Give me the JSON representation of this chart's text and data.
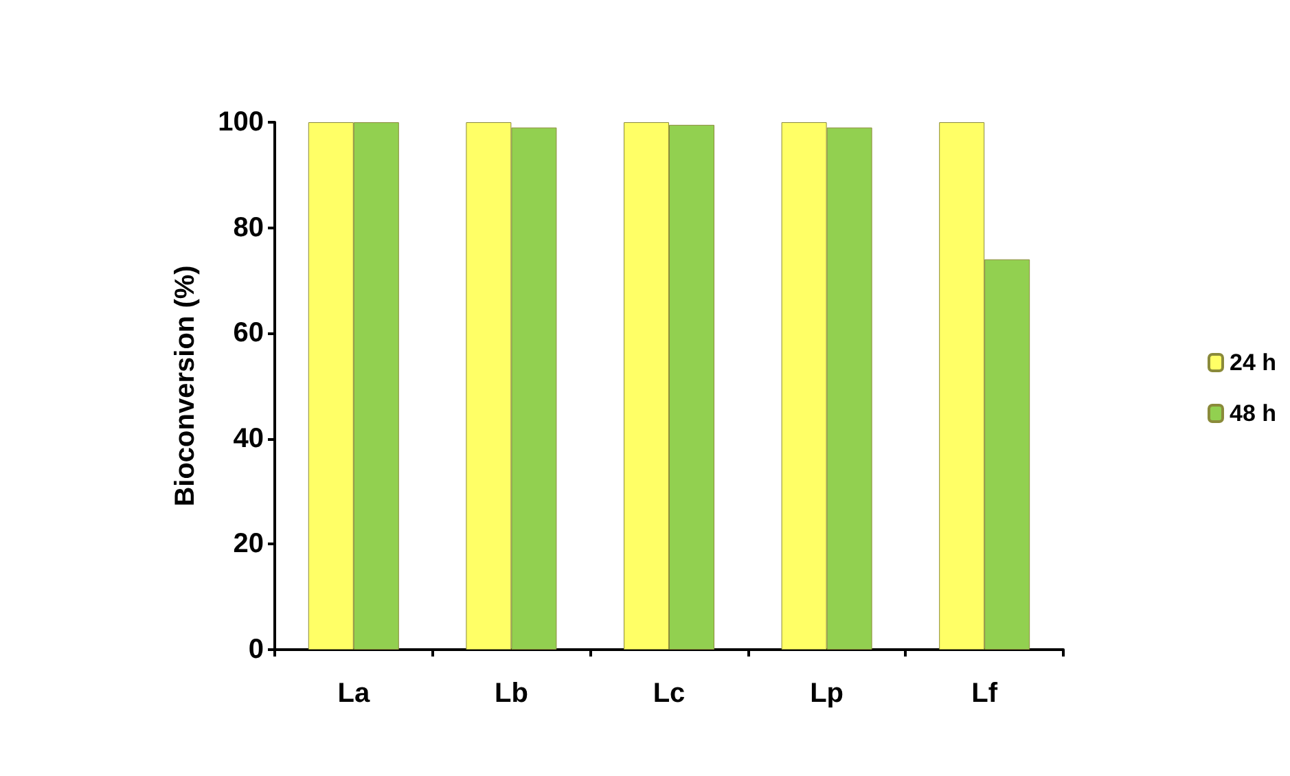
{
  "chart_data": {
    "type": "bar",
    "ylabel": "Bioconversion (%)",
    "categories": [
      "La",
      "Lb",
      "Lc",
      "Lp",
      "Lf"
    ],
    "series": [
      {
        "name": "24 h",
        "color": "#ffff66",
        "values": [
          100,
          100,
          100,
          100,
          100
        ]
      },
      {
        "name": "48 h",
        "color": "#92d050",
        "values": [
          100,
          99,
          99.5,
          99,
          74
        ]
      }
    ],
    "ylim": [
      0,
      100
    ],
    "yticks": [
      0,
      20,
      40,
      60,
      80,
      100
    ],
    "grid": false,
    "legend": "right"
  }
}
